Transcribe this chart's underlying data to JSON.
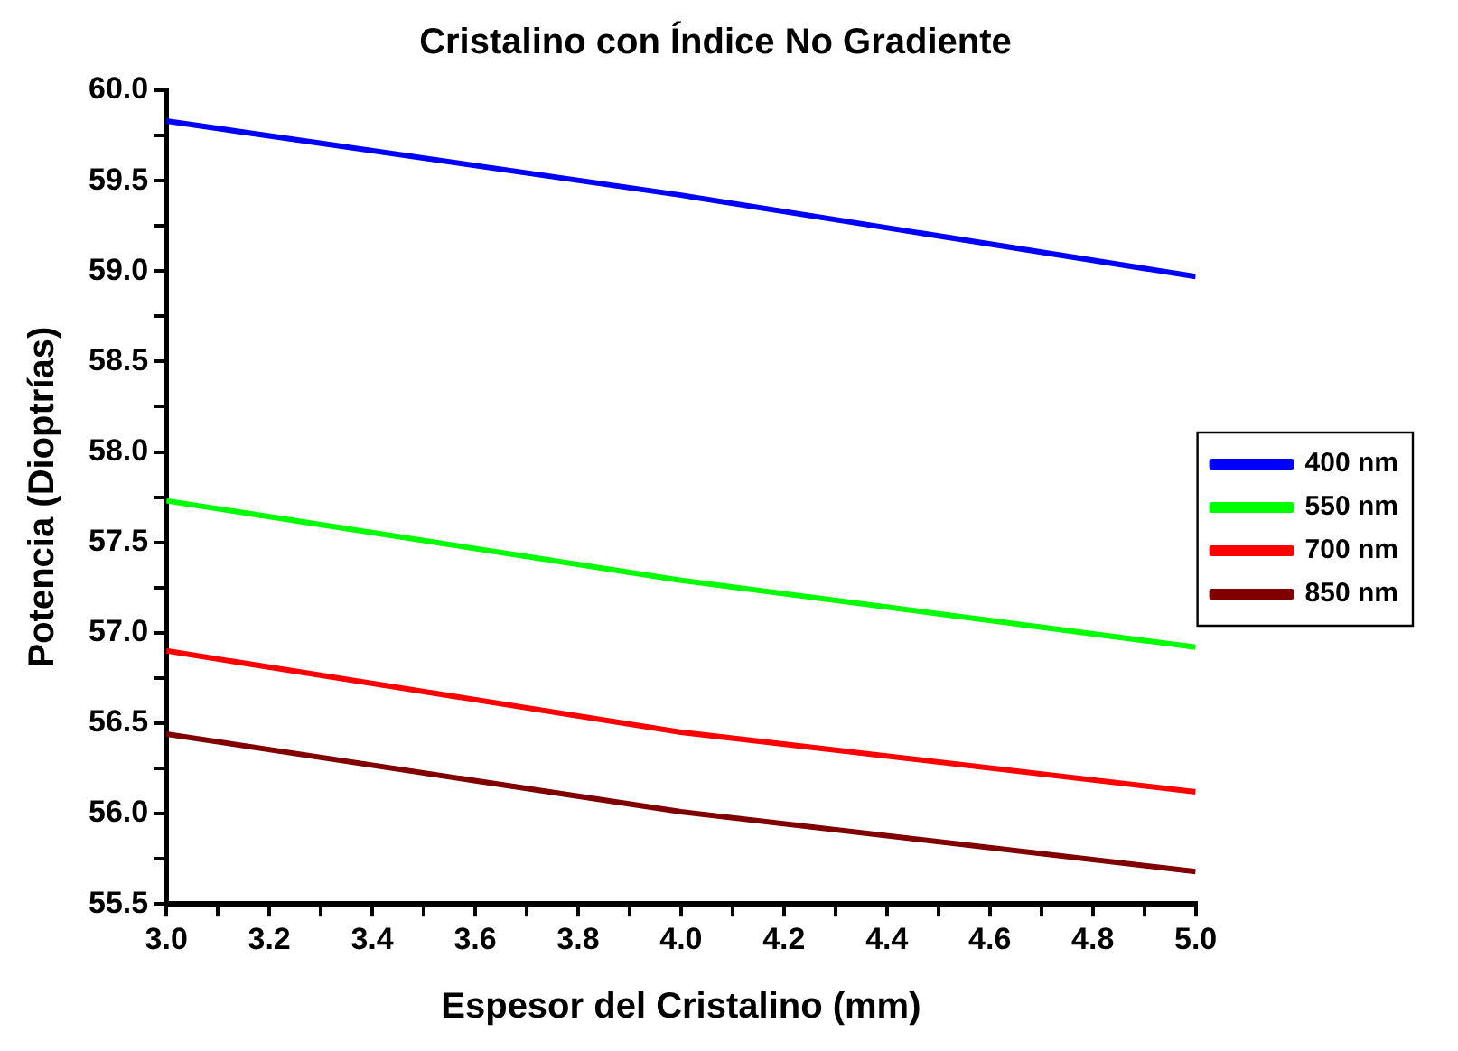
{
  "chart_data": {
    "type": "line",
    "title": "Cristalino con Índice No Gradiente",
    "xlabel": "Espesor del Cristalino (mm)",
    "ylabel": "Potencia (Dioptrías)",
    "x": [
      3.0,
      4.0,
      5.0
    ],
    "series": [
      {
        "name": "400 nm",
        "color": "#0000ff",
        "values": [
          59.83,
          59.42,
          58.97
        ]
      },
      {
        "name": "550 nm",
        "color": "#00ff00",
        "values": [
          57.73,
          57.29,
          56.92
        ]
      },
      {
        "name": "700 nm",
        "color": "#ff0000",
        "values": [
          56.9,
          56.45,
          56.12
        ]
      },
      {
        "name": "850 nm",
        "color": "#800000",
        "values": [
          56.44,
          56.01,
          55.68
        ]
      }
    ],
    "xlim": [
      3.0,
      5.0
    ],
    "xticks": [
      {
        "value": 3,
        "label": "3.0"
      },
      {
        "value": 3.1,
        "label": null
      },
      {
        "value": 3.2,
        "label": "3.2"
      },
      {
        "value": 3.3,
        "label": null
      },
      {
        "value": 3.4,
        "label": "3.4"
      },
      {
        "value": 3.5,
        "label": null
      },
      {
        "value": 3.6,
        "label": "3.6"
      },
      {
        "value": 3.7,
        "label": null
      },
      {
        "value": 3.8,
        "label": "3.8"
      },
      {
        "value": 3.9,
        "label": null
      },
      {
        "value": 4,
        "label": "4.0"
      },
      {
        "value": 4.1,
        "label": null
      },
      {
        "value": 4.2,
        "label": "4.2"
      },
      {
        "value": 4.3,
        "label": null
      },
      {
        "value": 4.4,
        "label": "4.4"
      },
      {
        "value": 4.5,
        "label": null
      },
      {
        "value": 4.6,
        "label": "4.6"
      },
      {
        "value": 4.7,
        "label": null
      },
      {
        "value": 4.8,
        "label": "4.8"
      },
      {
        "value": 4.9,
        "label": null
      },
      {
        "value": 5,
        "label": "5.0"
      }
    ],
    "ylim": [
      55.5,
      60.0
    ],
    "yticks": [
      {
        "value": 55.5,
        "label": "55.5"
      },
      {
        "value": 55.75,
        "label": null
      },
      {
        "value": 56,
        "label": "56.0"
      },
      {
        "value": 56.25,
        "label": null
      },
      {
        "value": 56.5,
        "label": "56.5"
      },
      {
        "value": 56.75,
        "label": null
      },
      {
        "value": 57,
        "label": "57.0"
      },
      {
        "value": 57.25,
        "label": null
      },
      {
        "value": 57.5,
        "label": "57.5"
      },
      {
        "value": 57.75,
        "label": null
      },
      {
        "value": 58,
        "label": "58.0"
      },
      {
        "value": 58.25,
        "label": null
      },
      {
        "value": 58.5,
        "label": "58.5"
      },
      {
        "value": 58.75,
        "label": null
      },
      {
        "value": 59,
        "label": "59.0"
      },
      {
        "value": 59.25,
        "label": null
      },
      {
        "value": 59.5,
        "label": "59.5"
      },
      {
        "value": 59.75,
        "label": null
      },
      {
        "value": 60,
        "label": "60.0"
      }
    ],
    "grid": false,
    "legend": "right",
    "marker": "none",
    "line_style": "solid"
  }
}
